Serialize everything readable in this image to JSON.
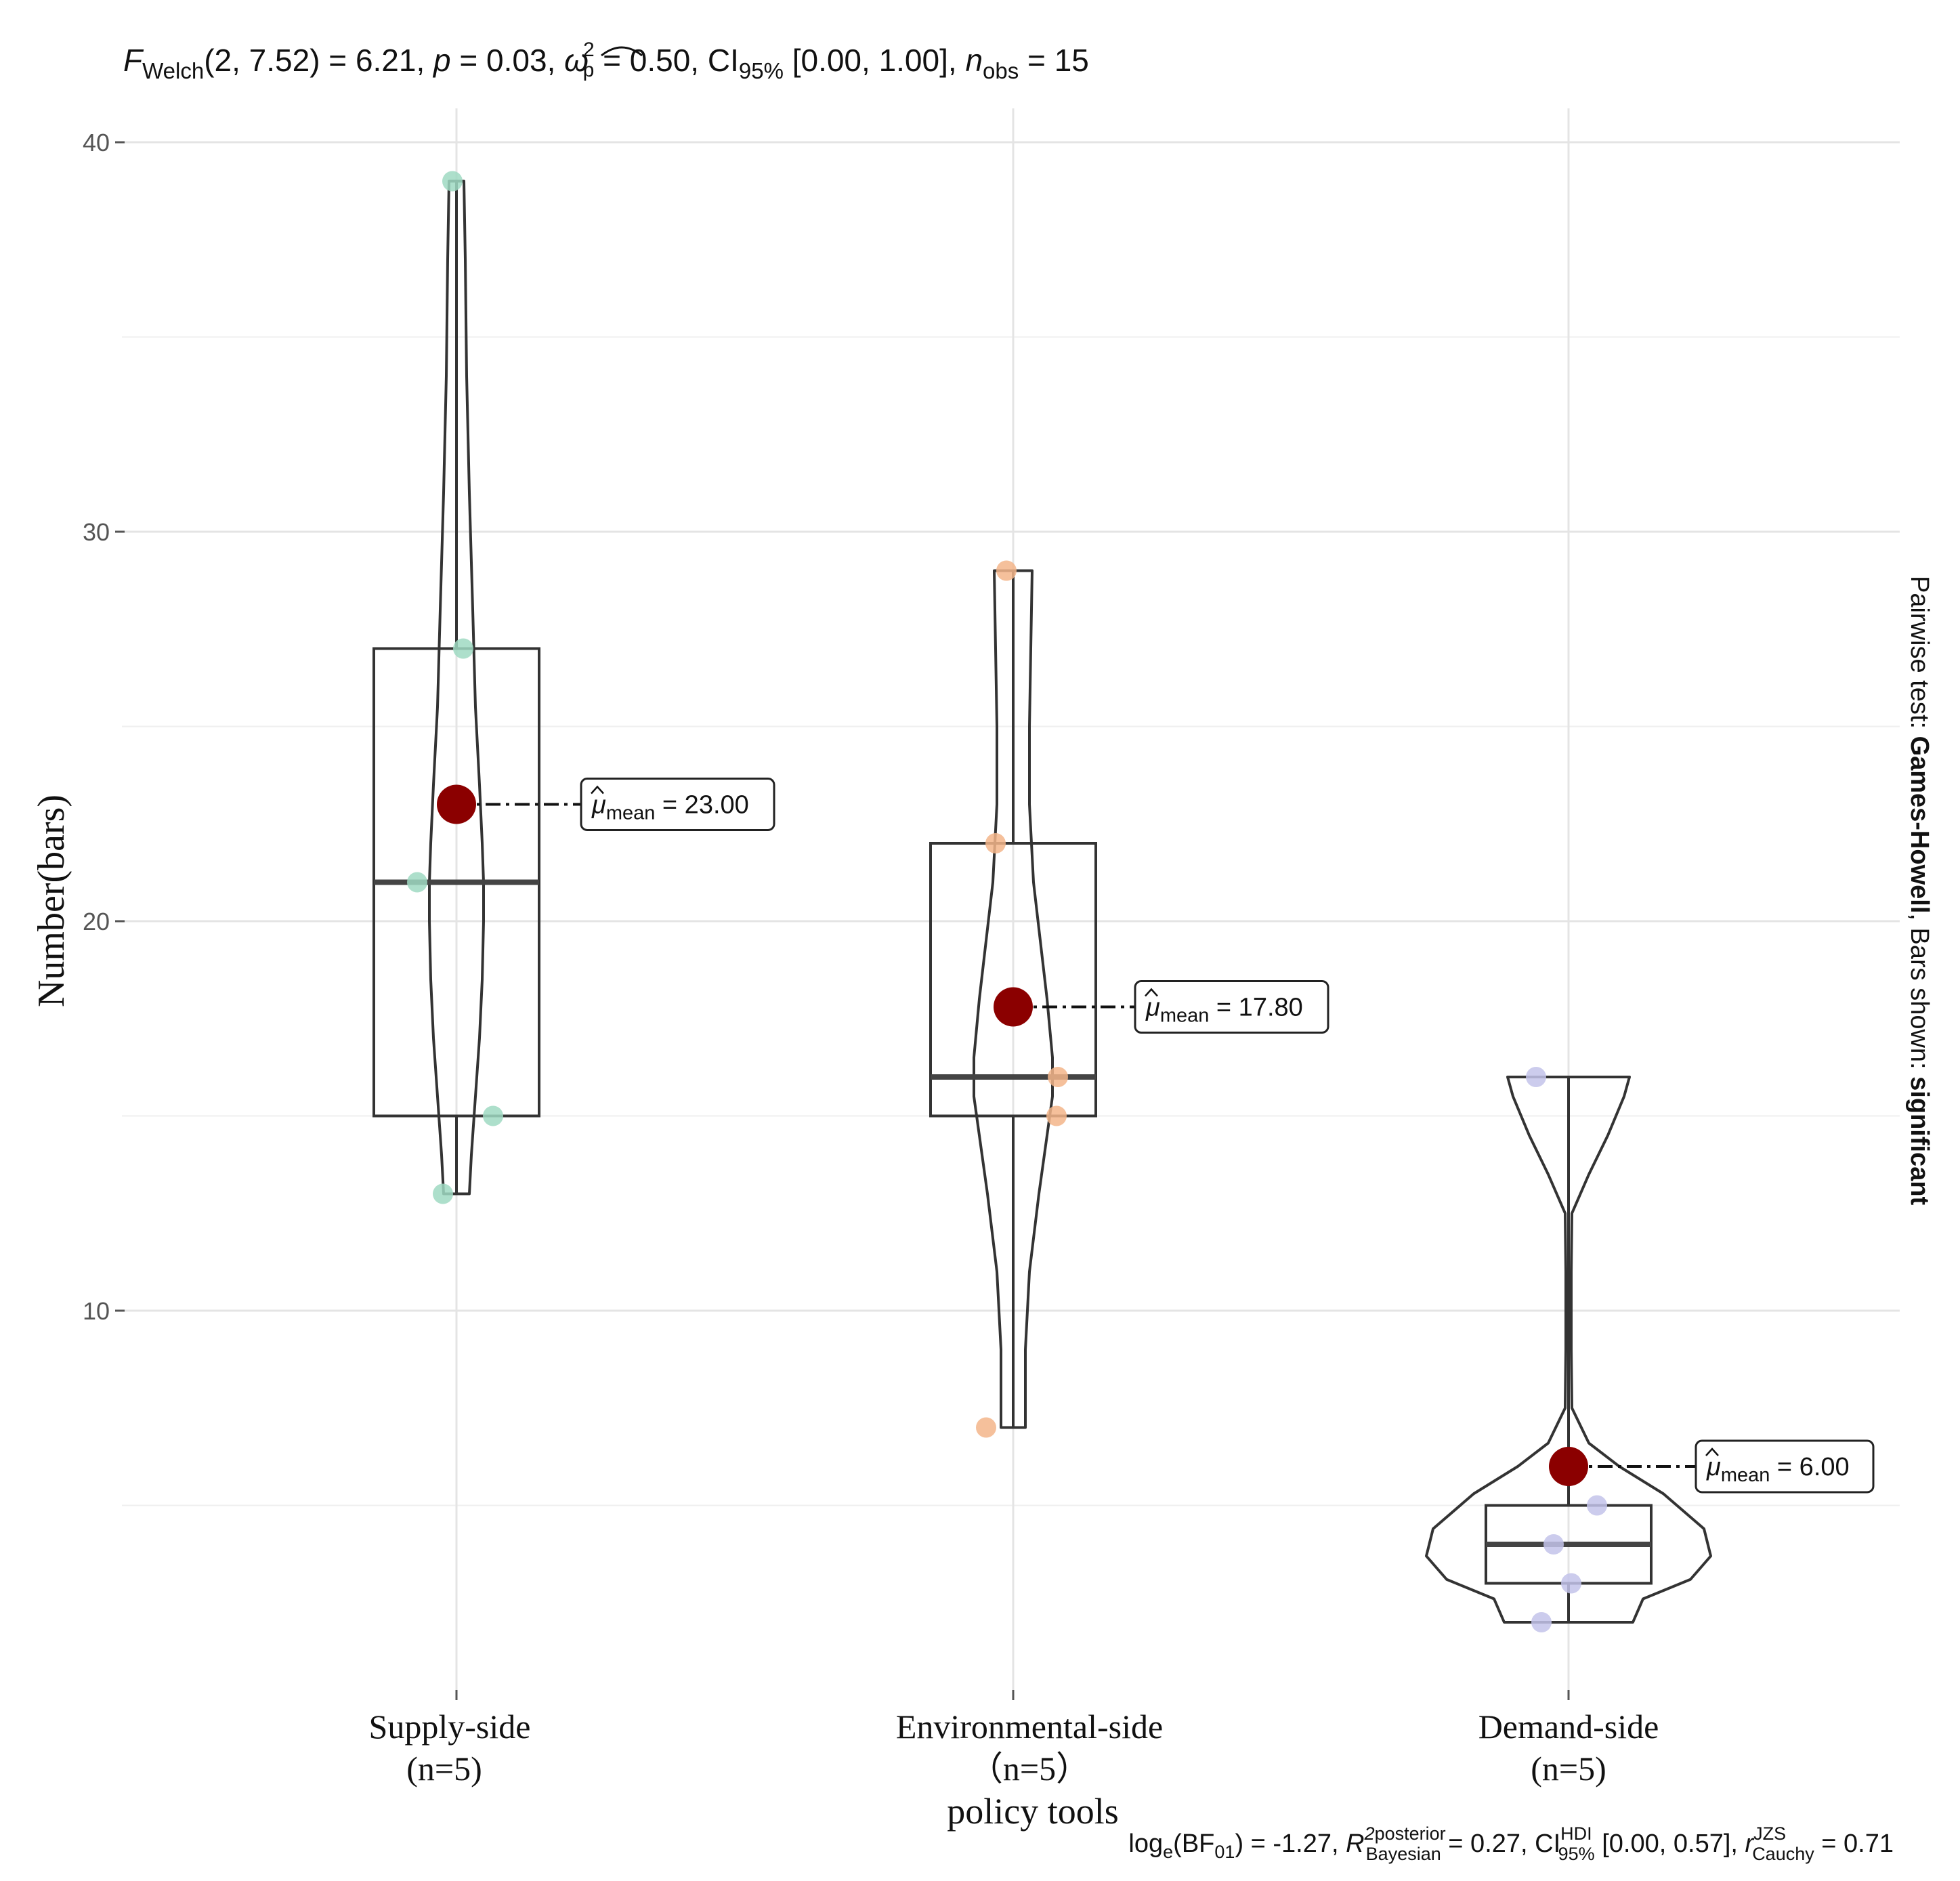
{
  "chart_data": {
    "type": "violin-box",
    "title_stats": {
      "F_sym": "F",
      "F_sub": "Welch",
      "F_args": "(2, 7.52)",
      "F_val": " = 6.21, ",
      "p_sym": "p",
      "p_val": " = 0.03, ",
      "omega_sym": "ω",
      "omega_sup": "2",
      "omega_sub": "p",
      "omega_val": " = 0.50, CI",
      "ci_sub": "95%",
      "ci_val": " [0.00, 1.00], ",
      "n_sym": "n",
      "n_sub": "obs",
      "n_val": " = 15"
    },
    "subtitle_stats": {
      "log_pre": "log",
      "log_sub": "e",
      "log_mid": "(BF",
      "log_bf_sub": "01",
      "log_val": ") = -1.27, ",
      "r2_sym": "R",
      "r2_sup": "2",
      "r2_sup2": "posterior",
      "r2_sub": "Bayesian",
      "r2_val": " = 0.27, CI",
      "hdi_sup": "HDI",
      "hdi_sub": "95%",
      "hdi_val": " [0.00, 0.57], ",
      "r_sym": "r",
      "r_sup": "JZS",
      "r_sub": "Cauchy",
      "r_val": " = 0.71"
    },
    "caption": {
      "prefix": "Pairwise test: ",
      "test": "Games-Howell",
      "middle": ", Bars shown: ",
      "shown": "significant"
    },
    "ylabel": "Number(bars)",
    "xlabel": "policy tools",
    "ylim": [
      1.5,
      41
    ],
    "yticks": [
      10,
      20,
      30,
      40
    ],
    "grid": true,
    "groups": [
      {
        "name": "Supply-side",
        "n_label": "(n=5)",
        "color": "#9fd9c2",
        "points": [
          39,
          27,
          21,
          15,
          13
        ],
        "box": {
          "q1": 15,
          "median": 21,
          "q3": 27
        },
        "mean": 23.0,
        "mean_label": "= 23.00"
      },
      {
        "name": "Environmental-side",
        "n_label": "（n=5）",
        "color": "#f3b58a",
        "points": [
          29,
          22,
          16,
          15,
          7
        ],
        "box": {
          "q1": 15,
          "median": 16,
          "q3": 22
        },
        "mean": 17.8,
        "mean_label": "= 17.80"
      },
      {
        "name": "Demand-side",
        "n_label": "(n=5)",
        "color": "#c3c3ea",
        "points": [
          16,
          5,
          4,
          3,
          2
        ],
        "box": {
          "q1": 3,
          "median": 4,
          "q3": 5
        },
        "mean": 6.0,
        "mean_label": "= 6.00"
      }
    ],
    "mean_symbol": "μ",
    "mean_subscript": "mean",
    "mean_color": "#8b0000"
  }
}
